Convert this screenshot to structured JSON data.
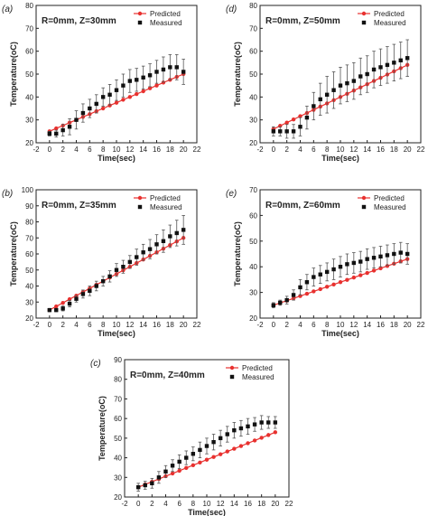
{
  "colors": {
    "predicted": "#e8312f",
    "measured": "#111111",
    "axis": "#222222",
    "errorbar": "#555555"
  },
  "chart_data": [
    {
      "panel_label": "(a)",
      "type": "scatter",
      "title": "R=0mm, Z=30mm",
      "xlabel": "Time(sec)",
      "ylabel": "Temperature(oC)",
      "xlim": [
        -2,
        22
      ],
      "ylim": [
        20,
        80
      ],
      "xticks": [
        -2,
        0,
        2,
        4,
        6,
        8,
        10,
        12,
        14,
        16,
        18,
        20,
        22
      ],
      "yticks": [
        20,
        30,
        40,
        50,
        60,
        70,
        80
      ],
      "legend_position": "top-right",
      "series": [
        {
          "name": "Predicted",
          "marker": "circle-line",
          "x": [
            0,
            1,
            2,
            3,
            4,
            5,
            6,
            7,
            8,
            9,
            10,
            11,
            12,
            13,
            14,
            15,
            16,
            17,
            18,
            19,
            20
          ],
          "y": [
            25,
            26.3,
            27.5,
            28.8,
            30,
            31.3,
            32.5,
            33.8,
            35,
            36.3,
            37.5,
            38.8,
            40,
            41.3,
            42.5,
            43.8,
            45,
            46.3,
            47.5,
            48.8,
            50
          ]
        },
        {
          "name": "Measured",
          "marker": "square",
          "x": [
            0,
            1,
            2,
            3,
            4,
            5,
            6,
            7,
            8,
            9,
            10,
            11,
            12,
            13,
            14,
            15,
            16,
            17,
            18,
            19,
            20
          ],
          "y": [
            24,
            24,
            25.5,
            27,
            30,
            33,
            35,
            37,
            40,
            41,
            43,
            45,
            47,
            47.5,
            48.5,
            49.5,
            51,
            52,
            53,
            53,
            51
          ],
          "error": [
            1,
            1.5,
            2.5,
            3.5,
            4,
            4,
            4,
            4,
            4,
            4.5,
            4.5,
            5,
            5,
            5,
            5,
            5,
            5,
            5.5,
            5.5,
            5.5,
            5.5
          ]
        }
      ]
    },
    {
      "panel_label": "(b)",
      "type": "scatter",
      "title": "R=0mm, Z=35mm",
      "xlabel": "Time(sec)",
      "ylabel": "Temperature(oC)",
      "xlim": [
        -2,
        22
      ],
      "ylim": [
        20,
        100
      ],
      "xticks": [
        -2,
        0,
        2,
        4,
        6,
        8,
        10,
        12,
        14,
        16,
        18,
        20,
        22
      ],
      "yticks": [
        20,
        30,
        40,
        50,
        60,
        70,
        80,
        90,
        100
      ],
      "legend_position": "top-right",
      "series": [
        {
          "name": "Predicted",
          "marker": "circle-line",
          "x": [
            0,
            1,
            2,
            3,
            4,
            5,
            6,
            7,
            8,
            9,
            10,
            11,
            12,
            13,
            14,
            15,
            16,
            17,
            18,
            19,
            20
          ],
          "y": [
            25,
            27.3,
            29.5,
            31.8,
            34,
            36.3,
            38.5,
            40.8,
            43,
            45.3,
            47.5,
            49.8,
            52,
            54.3,
            56.5,
            58.8,
            61,
            63.3,
            65.5,
            67.8,
            70
          ]
        },
        {
          "name": "Measured",
          "marker": "square",
          "x": [
            0,
            1,
            2,
            3,
            4,
            5,
            6,
            7,
            8,
            9,
            10,
            11,
            12,
            13,
            14,
            15,
            16,
            17,
            18,
            19,
            20
          ],
          "y": [
            25,
            25,
            26,
            29,
            32,
            35,
            37,
            40,
            43,
            46,
            50,
            52,
            55,
            58,
            61,
            63,
            66,
            68,
            71,
            73,
            75
          ],
          "error": [
            1,
            1,
            1.5,
            2,
            2,
            2.5,
            3,
            3,
            3,
            3.5,
            4,
            4,
            4,
            5,
            5,
            6,
            6,
            7,
            7,
            8,
            9
          ]
        }
      ]
    },
    {
      "panel_label": "(c)",
      "type": "scatter",
      "title": "R=0mm, Z=40mm",
      "xlabel": "Time(sec)",
      "ylabel": "Temperature(oC)",
      "xlim": [
        -2,
        22
      ],
      "ylim": [
        20,
        90
      ],
      "xticks": [
        -2,
        0,
        2,
        4,
        6,
        8,
        10,
        12,
        14,
        16,
        18,
        20,
        22
      ],
      "yticks": [
        20,
        30,
        40,
        50,
        60,
        70,
        80,
        90
      ],
      "legend_position": "top-right",
      "series": [
        {
          "name": "Predicted",
          "marker": "circle-line",
          "x": [
            0,
            1,
            2,
            3,
            4,
            5,
            6,
            7,
            8,
            9,
            10,
            11,
            12,
            13,
            14,
            15,
            16,
            17,
            18,
            19,
            20
          ],
          "y": [
            25,
            26.4,
            27.8,
            29.2,
            30.6,
            32,
            33.4,
            34.8,
            36.2,
            37.6,
            39,
            40.4,
            41.8,
            43.2,
            44.6,
            46,
            47.4,
            48.8,
            50.2,
            51.6,
            53
          ]
        },
        {
          "name": "Measured",
          "marker": "square",
          "x": [
            0,
            1,
            2,
            3,
            4,
            5,
            6,
            7,
            8,
            9,
            10,
            11,
            12,
            13,
            14,
            15,
            16,
            17,
            18,
            19,
            20
          ],
          "y": [
            25,
            26,
            27,
            30,
            33,
            36,
            38,
            40,
            42,
            44,
            46,
            48,
            50,
            52,
            54,
            55,
            56,
            57,
            58,
            58,
            58
          ],
          "error": [
            2,
            2,
            2.5,
            3,
            3,
            3,
            3.5,
            3.5,
            3.5,
            4,
            4,
            4,
            4,
            4,
            4,
            4,
            4,
            3.5,
            3.5,
            3,
            3
          ]
        }
      ]
    },
    {
      "panel_label": "(d)",
      "type": "scatter",
      "title": "R=0mm, Z=50mm",
      "xlabel": "Time(sec)",
      "ylabel": "Temperature(oC)",
      "xlim": [
        -2,
        22
      ],
      "ylim": [
        20,
        80
      ],
      "xticks": [
        -2,
        0,
        2,
        4,
        6,
        8,
        10,
        12,
        14,
        16,
        18,
        20,
        22
      ],
      "yticks": [
        20,
        30,
        40,
        50,
        60,
        70,
        80
      ],
      "legend_position": "top-right",
      "series": [
        {
          "name": "Predicted",
          "marker": "circle-line",
          "x": [
            0,
            1,
            2,
            3,
            4,
            5,
            6,
            7,
            8,
            9,
            10,
            11,
            12,
            13,
            14,
            15,
            16,
            17,
            18,
            19,
            20
          ],
          "y": [
            26,
            27.4,
            28.8,
            30.2,
            31.6,
            33,
            34.4,
            35.8,
            37.2,
            38.6,
            40,
            41.4,
            42.8,
            44.2,
            45.6,
            47,
            48.4,
            49.8,
            51.2,
            52.6,
            54
          ]
        },
        {
          "name": "Measured",
          "marker": "square",
          "x": [
            0,
            1,
            2,
            3,
            4,
            5,
            6,
            7,
            8,
            9,
            10,
            11,
            12,
            13,
            14,
            15,
            16,
            17,
            18,
            19,
            20
          ],
          "y": [
            25,
            25,
            25,
            25,
            27,
            31,
            36,
            39,
            41,
            43,
            45,
            46,
            47,
            49,
            50,
            52,
            53,
            54,
            55,
            56,
            57
          ],
          "error": [
            2,
            2,
            3,
            3,
            4,
            5,
            6,
            7,
            8,
            8,
            8,
            8,
            8,
            8,
            8,
            8,
            8,
            8,
            8,
            8,
            8
          ]
        }
      ]
    },
    {
      "panel_label": "(e)",
      "type": "scatter",
      "title": "R=0mm, Z=60mm",
      "xlabel": "Time(sec)",
      "ylabel": "Temperature(oC)",
      "xlim": [
        -2,
        22
      ],
      "ylim": [
        20,
        70
      ],
      "xticks": [
        -2,
        0,
        2,
        4,
        6,
        8,
        10,
        12,
        14,
        16,
        18,
        20,
        22
      ],
      "yticks": [
        20,
        30,
        40,
        50,
        60,
        70
      ],
      "legend_position": "top-right",
      "series": [
        {
          "name": "Predicted",
          "marker": "circle-line",
          "x": [
            0,
            1,
            2,
            3,
            4,
            5,
            6,
            7,
            8,
            9,
            10,
            11,
            12,
            13,
            14,
            15,
            16,
            17,
            18,
            19,
            20
          ],
          "y": [
            25,
            25.9,
            26.8,
            27.7,
            28.6,
            29.5,
            30.4,
            31.3,
            32.2,
            33.1,
            34,
            34.9,
            35.8,
            36.7,
            37.6,
            38.5,
            39.4,
            40.3,
            41.2,
            42.1,
            43
          ]
        },
        {
          "name": "Measured",
          "marker": "square",
          "x": [
            0,
            1,
            2,
            3,
            4,
            5,
            6,
            7,
            8,
            9,
            10,
            11,
            12,
            13,
            14,
            15,
            16,
            17,
            18,
            19,
            20
          ],
          "y": [
            25,
            26,
            27,
            29,
            32,
            34,
            36,
            37,
            38,
            39,
            40,
            41,
            41.5,
            42,
            43,
            43.5,
            44,
            44.5,
            45,
            45.5,
            45
          ],
          "error": [
            1,
            1,
            1.5,
            2,
            3,
            3,
            3.5,
            3.5,
            3.5,
            4,
            4,
            4,
            4,
            4,
            4,
            4,
            4,
            4,
            4,
            4,
            4
          ]
        }
      ]
    }
  ]
}
